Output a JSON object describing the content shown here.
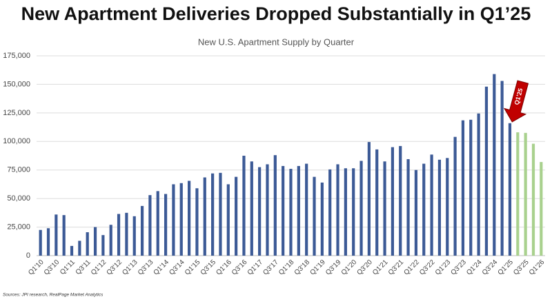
{
  "chart_data": {
    "type": "bar",
    "title": "New Apartment Deliveries Dropped Substantially in Q1’25",
    "subtitle": "New U.S. Apartment Supply by Quarter",
    "source": "Sources: JPI research, RealPage Market Analytics",
    "annotation": "Q1’25",
    "categories": [
      "Q1'10",
      null,
      "Q3'10",
      null,
      "Q1'11",
      null,
      "Q3'11",
      null,
      "Q1'12",
      null,
      "Q3'12",
      null,
      "Q1'13",
      null,
      "Q3'13",
      null,
      "Q1'14",
      null,
      "Q3'14",
      null,
      "Q1'15",
      null,
      "Q3'15",
      null,
      "Q1'16",
      null,
      "Q3'16",
      null,
      "Q1'17",
      null,
      "Q3'17",
      null,
      "Q1'18",
      null,
      "Q3'18",
      null,
      "Q1'19",
      null,
      "Q3'19",
      null,
      "Q1'20",
      null,
      "Q3'20",
      null,
      "Q1'21",
      null,
      "Q3'21",
      null,
      "Q1'22",
      null,
      "Q3'22",
      null,
      "Q1'23",
      null,
      "Q3'23",
      null,
      "Q1'24",
      null,
      "Q3'24",
      null,
      "Q1'25",
      null,
      "Q3'25",
      null,
      "Q1'26"
    ],
    "values": [
      22500,
      24000,
      36000,
      35500,
      8500,
      13000,
      20500,
      25000,
      18000,
      27000,
      36500,
      37500,
      34500,
      43500,
      53000,
      56500,
      54000,
      62500,
      63500,
      65500,
      59000,
      68500,
      72000,
      72500,
      62500,
      69000,
      87500,
      82500,
      77500,
      80000,
      88000,
      78500,
      76000,
      78500,
      80500,
      69000,
      64000,
      75500,
      80000,
      76500,
      76500,
      83000,
      99500,
      93000,
      82500,
      95000,
      96000,
      84500,
      75000,
      80500,
      88500,
      84000,
      85500,
      104000,
      118500,
      119000,
      124500,
      148000,
      159000,
      153000,
      116000,
      108000,
      107500,
      98000,
      82000
    ],
    "colors": [
      "#3c5a96",
      "#3c5a96",
      "#3c5a96",
      "#3c5a96",
      "#3c5a96",
      "#3c5a96",
      "#3c5a96",
      "#3c5a96",
      "#3c5a96",
      "#3c5a96",
      "#3c5a96",
      "#3c5a96",
      "#3c5a96",
      "#3c5a96",
      "#3c5a96",
      "#3c5a96",
      "#3c5a96",
      "#3c5a96",
      "#3c5a96",
      "#3c5a96",
      "#3c5a96",
      "#3c5a96",
      "#3c5a96",
      "#3c5a96",
      "#3c5a96",
      "#3c5a96",
      "#3c5a96",
      "#3c5a96",
      "#3c5a96",
      "#3c5a96",
      "#3c5a96",
      "#3c5a96",
      "#3c5a96",
      "#3c5a96",
      "#3c5a96",
      "#3c5a96",
      "#3c5a96",
      "#3c5a96",
      "#3c5a96",
      "#3c5a96",
      "#3c5a96",
      "#3c5a96",
      "#3c5a96",
      "#3c5a96",
      "#3c5a96",
      "#3c5a96",
      "#3c5a96",
      "#3c5a96",
      "#3c5a96",
      "#3c5a96",
      "#3c5a96",
      "#3c5a96",
      "#3c5a96",
      "#3c5a96",
      "#3c5a96",
      "#3c5a96",
      "#3c5a96",
      "#3c5a96",
      "#3c5a96",
      "#3c5a96",
      "#3c5a96",
      "#a9d18e",
      "#a9d18e",
      "#a9d18e",
      "#a9d18e"
    ],
    "ylim": [
      0,
      175000
    ],
    "yticks": [
      0,
      {
        "value": 25000,
        "label": "25,000"
      },
      {
        "value": 50000,
        "label": "50,000"
      },
      {
        "value": 75000,
        "label": "75,000"
      },
      {
        "value": 100000,
        "label": "100,000"
      },
      {
        "value": 125000,
        "label": "125,000"
      },
      {
        "value": 150000,
        "label": "150,000"
      },
      {
        "value": 175000,
        "label": "175,000"
      }
    ],
    "grid": true
  }
}
